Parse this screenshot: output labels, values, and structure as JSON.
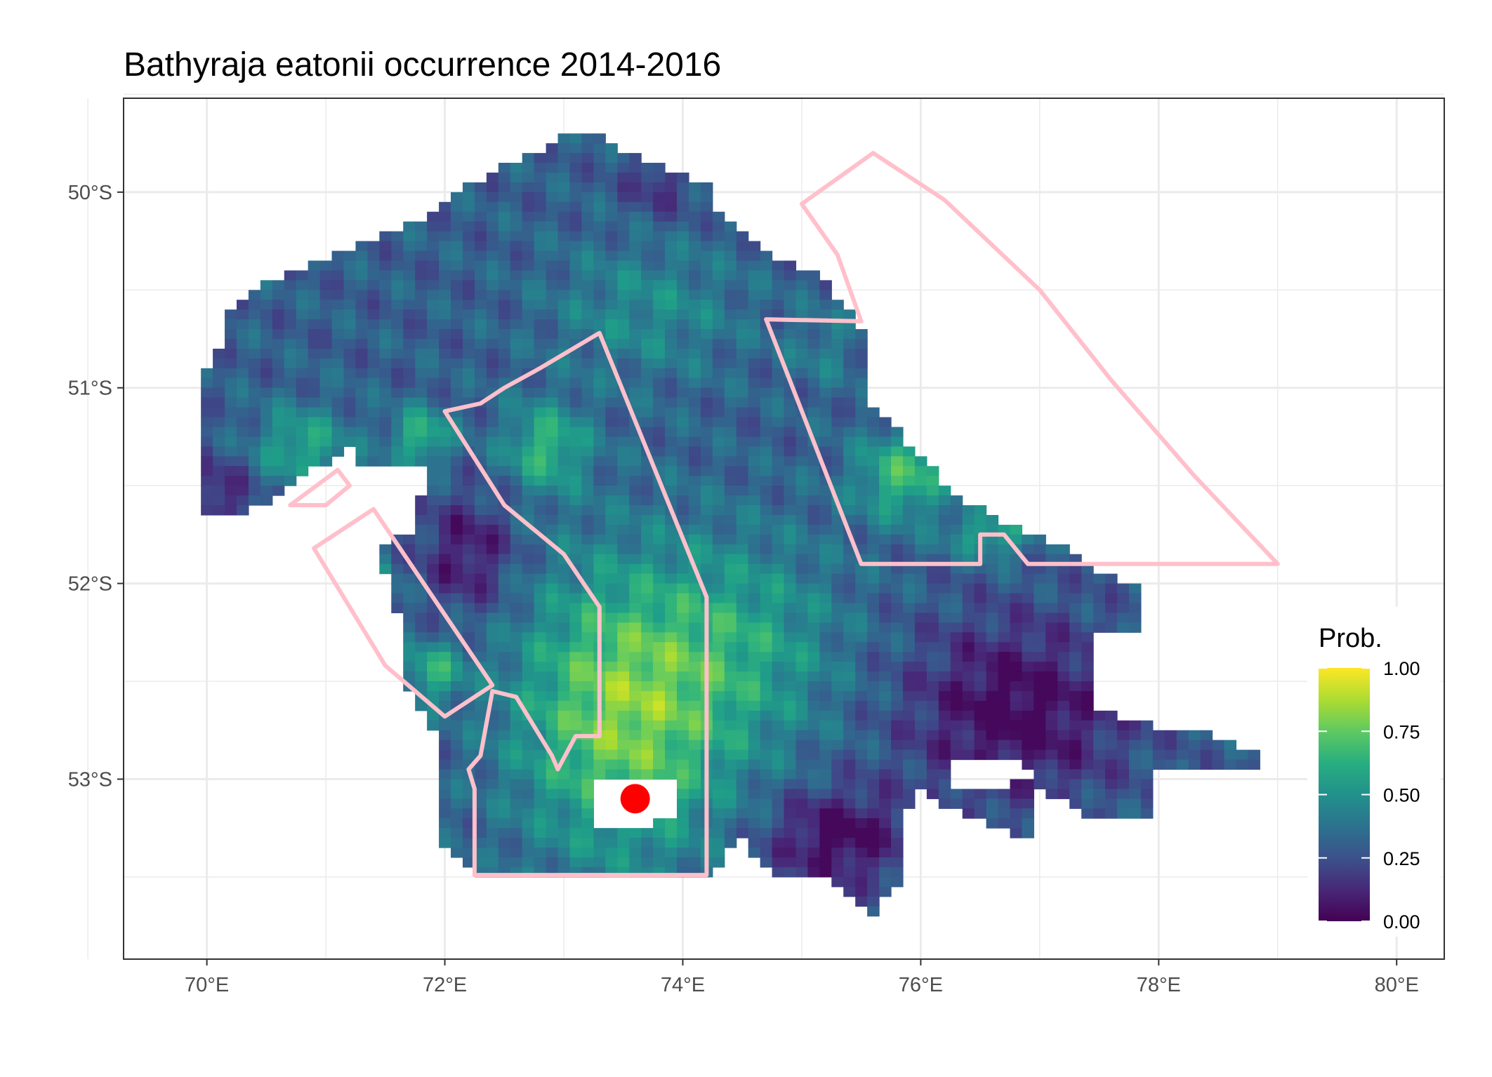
{
  "title": "Bathyraja eatonii  occurrence 2014-2016",
  "map": {
    "lon_range": [
      69.3,
      80.4
    ],
    "lat_range": [
      -53.92,
      -49.52
    ],
    "x_ticks": [
      {
        "value": 70,
        "label": "70°E"
      },
      {
        "value": 72,
        "label": "72°E"
      },
      {
        "value": 74,
        "label": "74°E"
      },
      {
        "value": 76,
        "label": "76°E"
      },
      {
        "value": 78,
        "label": "78°E"
      },
      {
        "value": 80,
        "label": "80°E"
      }
    ],
    "y_ticks": [
      {
        "value": -50,
        "label": "50°S"
      },
      {
        "value": -51,
        "label": "51°S"
      },
      {
        "value": -52,
        "label": "52°S"
      },
      {
        "value": -53,
        "label": "53°S"
      }
    ],
    "grid": true,
    "panel_background": "#ffffff",
    "grid_color": "#ebebeb",
    "raster": {
      "variable": "probability of occurrence",
      "cell_size_deg": [
        0.1,
        0.05
      ],
      "value_range": [
        0,
        1
      ],
      "colormap": "viridis"
    },
    "boundary_color": "#ffc0cb",
    "boundaries": [
      [
        [
          73.3,
          -50.72
        ],
        [
          72.8,
          -50.9
        ],
        [
          72.5,
          -51.0
        ],
        [
          72.3,
          -51.08
        ],
        [
          72.0,
          -51.12
        ],
        [
          72.5,
          -51.6
        ],
        [
          73.0,
          -51.85
        ],
        [
          73.3,
          -52.12
        ],
        [
          73.3,
          -52.78
        ],
        [
          73.1,
          -52.78
        ],
        [
          72.95,
          -52.95
        ],
        [
          72.9,
          -52.88
        ],
        [
          72.6,
          -52.58
        ],
        [
          72.4,
          -52.55
        ],
        [
          72.3,
          -52.88
        ],
        [
          72.2,
          -52.95
        ],
        [
          72.25,
          -53.05
        ],
        [
          72.25,
          -53.49
        ],
        [
          74.2,
          -53.49
        ],
        [
          74.2,
          -52.07
        ],
        [
          73.3,
          -50.72
        ]
      ],
      [
        [
          70.7,
          -51.6
        ],
        [
          71.0,
          -51.6
        ],
        [
          71.2,
          -51.5
        ],
        [
          71.1,
          -51.42
        ],
        [
          70.7,
          -51.6
        ]
      ],
      [
        [
          71.4,
          -51.62
        ],
        [
          70.9,
          -51.82
        ],
        [
          71.5,
          -52.42
        ],
        [
          72.0,
          -52.68
        ],
        [
          72.4,
          -52.52
        ],
        [
          71.4,
          -51.62
        ]
      ],
      [
        [
          74.7,
          -50.65
        ],
        [
          75.5,
          -50.66
        ],
        [
          75.3,
          -50.32
        ],
        [
          75.0,
          -50.06
        ],
        [
          75.6,
          -49.8
        ],
        [
          76.2,
          -50.04
        ],
        [
          77.0,
          -50.5
        ],
        [
          77.6,
          -50.96
        ],
        [
          78.3,
          -51.45
        ],
        [
          79.0,
          -51.9
        ],
        [
          76.9,
          -51.9
        ],
        [
          76.7,
          -51.75
        ],
        [
          76.5,
          -51.75
        ],
        [
          76.5,
          -51.9
        ],
        [
          75.5,
          -51.9
        ],
        [
          74.7,
          -50.65
        ]
      ]
    ],
    "point": {
      "lon": 73.6,
      "lat": -53.1,
      "color": "#ff0000"
    }
  },
  "legend": {
    "title": "Prob.",
    "ticks": [
      {
        "value": 0.0,
        "label": "0.00"
      },
      {
        "value": 0.25,
        "label": "0.25"
      },
      {
        "value": 0.5,
        "label": "0.50"
      },
      {
        "value": 0.75,
        "label": "0.75"
      },
      {
        "value": 1.0,
        "label": "1.00"
      }
    ],
    "colors": [
      "#440154",
      "#3b528b",
      "#21918c",
      "#5ec962",
      "#fde725"
    ]
  }
}
